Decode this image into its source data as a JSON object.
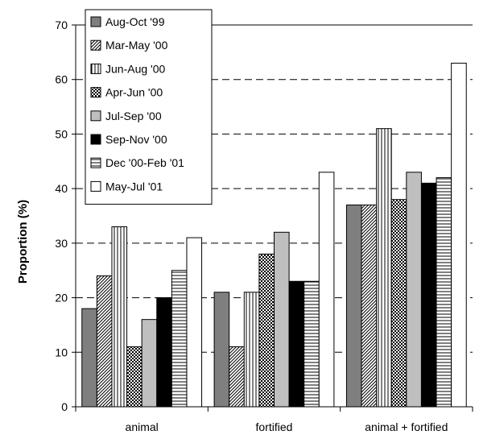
{
  "chart_data": {
    "type": "bar",
    "ylabel": "Proportion (%)",
    "xlabel": "",
    "ylim": [
      0,
      70
    ],
    "yticks": [
      0,
      10,
      20,
      30,
      40,
      50,
      60,
      70
    ],
    "grid": "horizontal dashed",
    "legend_position": "top-left",
    "categories": [
      "animal",
      "fortified",
      "animal + fortified"
    ],
    "series": [
      {
        "name": "Aug-Oct '99",
        "values": [
          18,
          21,
          37
        ],
        "fill": "gray"
      },
      {
        "name": "Mar-May '00",
        "values": [
          24,
          11,
          37
        ],
        "fill": "diagonal"
      },
      {
        "name": "Jun-Aug '00",
        "values": [
          33,
          21,
          51
        ],
        "fill": "vertical"
      },
      {
        "name": "Apr-Jun '00",
        "values": [
          11,
          28,
          38
        ],
        "fill": "checker"
      },
      {
        "name": "Jul-Sep '00",
        "values": [
          16,
          32,
          43
        ],
        "fill": "lightgray"
      },
      {
        "name": "Sep-Nov '00",
        "values": [
          20,
          23,
          41
        ],
        "fill": "black"
      },
      {
        "name": "Dec '00-Feb '01",
        "values": [
          25,
          23,
          42
        ],
        "fill": "horizontal"
      },
      {
        "name": "May-Jul '01",
        "values": [
          31,
          43,
          63
        ],
        "fill": "white"
      }
    ]
  }
}
